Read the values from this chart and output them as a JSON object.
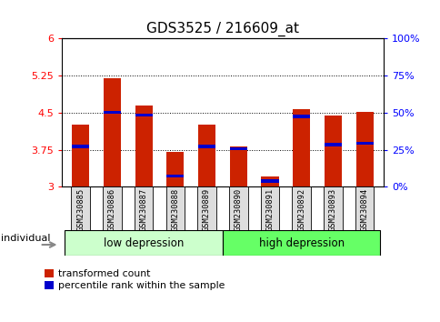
{
  "title": "GDS3525 / 216609_at",
  "samples": [
    "GSM230885",
    "GSM230886",
    "GSM230887",
    "GSM230888",
    "GSM230889",
    "GSM230890",
    "GSM230891",
    "GSM230892",
    "GSM230893",
    "GSM230894"
  ],
  "red_values": [
    4.25,
    5.19,
    4.65,
    3.7,
    4.25,
    3.82,
    3.2,
    4.58,
    4.45,
    4.52
  ],
  "blue_values": [
    3.82,
    4.51,
    4.45,
    3.22,
    3.82,
    3.77,
    3.12,
    4.42,
    3.85,
    3.88
  ],
  "ymin": 3.0,
  "ymax": 6.0,
  "yticks": [
    3,
    3.75,
    4.5,
    5.25,
    6
  ],
  "ytick_labels": [
    "3",
    "3.75",
    "4.5",
    "5.25",
    "6"
  ],
  "right_ytick_vals_pct": [
    0,
    25,
    50,
    75,
    100
  ],
  "right_ytick_labels": [
    "0%",
    "25%",
    "50%",
    "75%",
    "100%"
  ],
  "group1_label": "low depression",
  "group2_label": "high depression",
  "group1_count": 5,
  "group2_count": 5,
  "group1_color": "#ccffcc",
  "group2_color": "#66ff66",
  "bar_color": "#cc2200",
  "blue_color": "#0000cc",
  "individual_label": "individual",
  "legend1": "transformed count",
  "legend2": "percentile rank within the sample",
  "title_fontsize": 11,
  "bar_width": 0.55,
  "sample_box_color": "#dddddd",
  "spine_color": "#000000"
}
